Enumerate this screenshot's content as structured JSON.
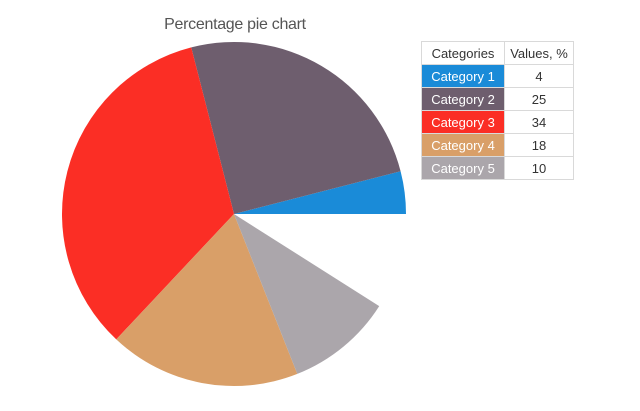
{
  "chart_data": {
    "type": "pie",
    "title": "Percentage pie chart",
    "table_headers": [
      "Categories",
      "Values, %"
    ],
    "categories": [
      "Category 1",
      "Category 2",
      "Category 3",
      "Category 4",
      "Category 5"
    ],
    "values": [
      4,
      25,
      34,
      18,
      10
    ],
    "colors": [
      "#1a8bd8",
      "#6e5e6e",
      "#fb2e25",
      "#d99f68",
      "#aba6ab"
    ],
    "legend_position": "top-right"
  }
}
